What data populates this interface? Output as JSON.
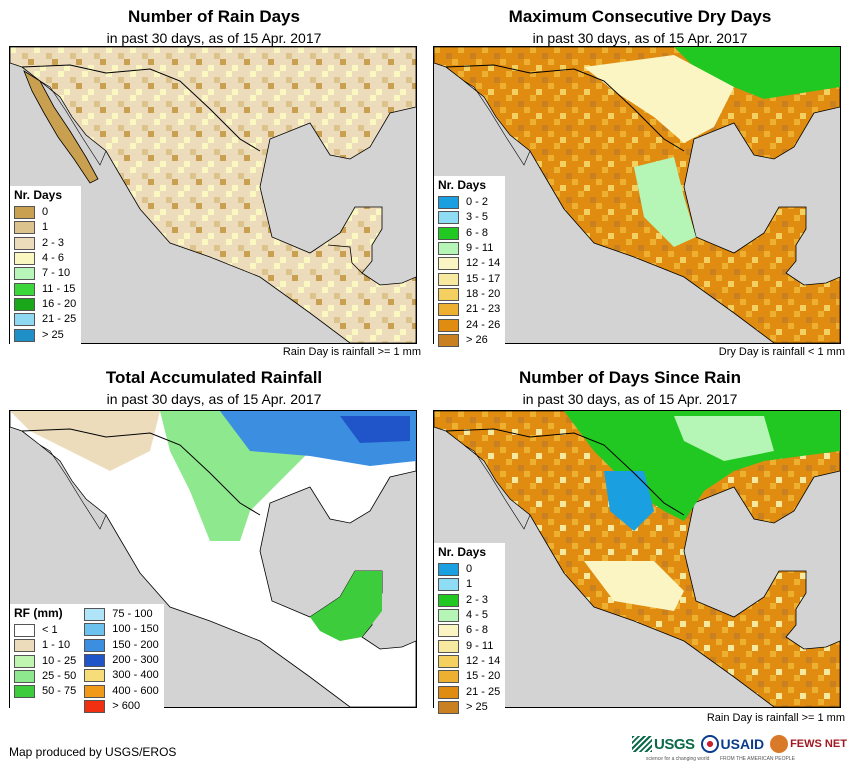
{
  "panels": [
    {
      "title": "Number of Rain Days",
      "subtitle": "in past 30 days, as of 15 Apr. 2017",
      "note": "Rain Day is rainfall >= 1 mm",
      "legend_title": "Nr. Days",
      "legend": [
        {
          "label": "0",
          "color": "#c8a050"
        },
        {
          "label": "1",
          "color": "#dcc38e"
        },
        {
          "label": "2 - 3",
          "color": "#ecdcbc"
        },
        {
          "label": "4 - 6",
          "color": "#fbf7c0"
        },
        {
          "label": "7 - 10",
          "color": "#b8f5b8"
        },
        {
          "label": "11 - 15",
          "color": "#3ad63a"
        },
        {
          "label": "16 - 20",
          "color": "#1aa81a"
        },
        {
          "label": "21 - 25",
          "color": "#8fd8f2"
        },
        {
          "label": "> 25",
          "color": "#1f8fc8"
        }
      ]
    },
    {
      "title": "Maximum Consecutive Dry Days",
      "subtitle": "in past 30 days, as of 15 Apr. 2017",
      "note": "Dry Day is rainfall < 1 mm",
      "legend_title": "Nr. Days",
      "legend": [
        {
          "label": "0 - 2",
          "color": "#1aa0e0"
        },
        {
          "label": "3 - 5",
          "color": "#8fdcf5"
        },
        {
          "label": "6 - 8",
          "color": "#22c822"
        },
        {
          "label": "9 - 11",
          "color": "#b5f5b5"
        },
        {
          "label": "12 - 14",
          "color": "#fbf5c4"
        },
        {
          "label": "15 - 17",
          "color": "#f7e9a0"
        },
        {
          "label": "18 - 20",
          "color": "#f3d060"
        },
        {
          "label": "21 - 23",
          "color": "#eeb030"
        },
        {
          "label": "24 - 26",
          "color": "#e08c10"
        },
        {
          "label": "> 26",
          "color": "#c88020"
        }
      ]
    },
    {
      "title": "Total Accumulated Rainfall",
      "subtitle": "in past 30 days, as of 15 Apr. 2017",
      "note": "",
      "legend_title": "RF (mm)",
      "legend": [
        {
          "label": "< 1",
          "color": "#ffffff"
        },
        {
          "label": "1 - 10",
          "color": "#ecdcbc"
        },
        {
          "label": "10 - 25",
          "color": "#bff5b0"
        },
        {
          "label": "25 - 50",
          "color": "#8ee88e"
        },
        {
          "label": "50 - 75",
          "color": "#3ccc3c"
        }
      ],
      "legend_col2": [
        {
          "label": "75 - 100",
          "color": "#b0e4f8"
        },
        {
          "label": "100 - 150",
          "color": "#6cc2ee"
        },
        {
          "label": "150 - 200",
          "color": "#3c8fe0"
        },
        {
          "label": "200 - 300",
          "color": "#1f55c8"
        },
        {
          "label": "300 - 400",
          "color": "#f7dc7a"
        },
        {
          "label": "400 - 600",
          "color": "#f09a18"
        },
        {
          "label": "> 600",
          "color": "#f03010"
        }
      ]
    },
    {
      "title": "Number of Days Since Rain",
      "subtitle": "in past 30 days, as of 15 Apr. 2017",
      "note": "Rain Day is rainfall >= 1 mm",
      "legend_title": "Nr. Days",
      "legend": [
        {
          "label": "0",
          "color": "#1aa0e0"
        },
        {
          "label": "1",
          "color": "#8fdcf5"
        },
        {
          "label": "2 - 3",
          "color": "#22c822"
        },
        {
          "label": "4 - 5",
          "color": "#b5f5b5"
        },
        {
          "label": "6 - 8",
          "color": "#fbf5c4"
        },
        {
          "label": "9 - 11",
          "color": "#f7e9a0"
        },
        {
          "label": "12 - 14",
          "color": "#f3d060"
        },
        {
          "label": "15 - 20",
          "color": "#eeb030"
        },
        {
          "label": "21 - 25",
          "color": "#e08c10"
        },
        {
          "label": "> 25",
          "color": "#c88020"
        }
      ]
    }
  ],
  "footer": "Map produced by USGS/EROS",
  "logos": {
    "usgs": "USGS",
    "usgs_tagline": "science for a changing world",
    "usaid": "USAID",
    "usaid_tagline": "FROM THE AMERICAN PEOPLE",
    "fews": "FEWS NET"
  },
  "colors": {
    "ocean": "#d3d3d3",
    "border": "#000000"
  }
}
